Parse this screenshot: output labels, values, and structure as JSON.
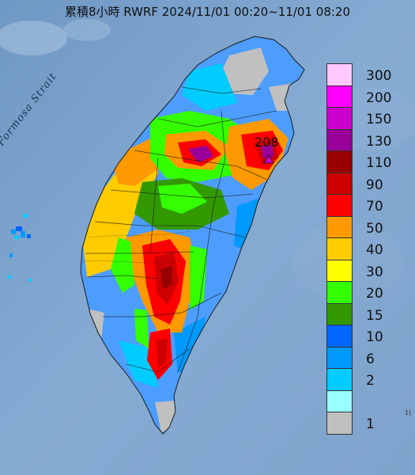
{
  "title": "累積8小時 RWRF 2024/11/01 00:20~11/01 08:20",
  "map": {
    "strait_label": "Formosa Strait",
    "max_value_label": "208",
    "corner_label": "1("
  },
  "legend": {
    "levels": [
      {
        "label": "300",
        "color": "#ffc8ff"
      },
      {
        "label": "200",
        "color": "#ff00ff"
      },
      {
        "label": "150",
        "color": "#cc00cc"
      },
      {
        "label": "130",
        "color": "#990099"
      },
      {
        "label": "110",
        "color": "#990000"
      },
      {
        "label": "90",
        "color": "#cc0000"
      },
      {
        "label": "70",
        "color": "#ff0000"
      },
      {
        "label": "50",
        "color": "#ff9900"
      },
      {
        "label": "40",
        "color": "#ffcc00"
      },
      {
        "label": "30",
        "color": "#ffff00"
      },
      {
        "label": "20",
        "color": "#33ff00"
      },
      {
        "label": "15",
        "color": "#339900"
      },
      {
        "label": "10",
        "color": "#0066ff"
      },
      {
        "label": "6",
        "color": "#0099ff"
      },
      {
        "label": "2",
        "color": "#00ccff"
      },
      {
        "label": "",
        "color": "#99ffff"
      },
      {
        "label": "1",
        "color": "#c0c0c0"
      }
    ]
  },
  "colors": {
    "sea": "#7fa6cf",
    "land_low": "#4d9dff",
    "marker": "#cc00cc"
  }
}
